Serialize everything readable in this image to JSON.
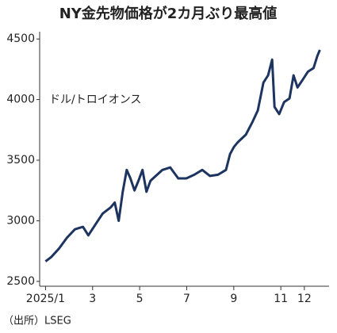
{
  "chart_data": {
    "type": "line",
    "title": "NY金先物価格が2カ月ぶり最高値",
    "unit_label": "ドル/トロイオンス",
    "source": "（出所）LSEG",
    "x": [
      1.0,
      1.24,
      1.57,
      1.91,
      2.25,
      2.59,
      2.82,
      3.09,
      3.43,
      3.77,
      3.94,
      4.11,
      4.28,
      4.45,
      4.61,
      4.78,
      4.95,
      5.12,
      5.29,
      5.46,
      5.63,
      5.97,
      6.3,
      6.64,
      6.98,
      7.32,
      7.66,
      7.99,
      8.33,
      8.67,
      8.84,
      9.01,
      9.18,
      9.51,
      9.78,
      10.02,
      10.26,
      10.46,
      10.63,
      10.73,
      10.93,
      11.14,
      11.37,
      11.54,
      11.71,
      11.95,
      12.15,
      12.39,
      12.55,
      12.66
    ],
    "series": [
      {
        "color": "#1d3461",
        "values": [
          2665,
          2700,
          2770,
          2860,
          2930,
          2950,
          2880,
          2960,
          3060,
          3110,
          3150,
          3000,
          3240,
          3420,
          3350,
          3250,
          3330,
          3420,
          3240,
          3330,
          3360,
          3420,
          3440,
          3350,
          3350,
          3380,
          3420,
          3370,
          3380,
          3420,
          3550,
          3610,
          3650,
          3710,
          3810,
          3910,
          4140,
          4200,
          4330,
          3940,
          3880,
          3980,
          4010,
          4200,
          4100,
          4170,
          4230,
          4260,
          4360,
          4410
        ]
      }
    ],
    "xlim": [
      0.75,
      13.05
    ],
    "xticks": [
      {
        "value": 1,
        "label": "2025/1"
      },
      3,
      5,
      7,
      9,
      11,
      12
    ],
    "ylim": [
      2460,
      4560
    ],
    "yticks": [
      2500,
      3000,
      3500,
      4000,
      4500
    ],
    "grid": false
  }
}
